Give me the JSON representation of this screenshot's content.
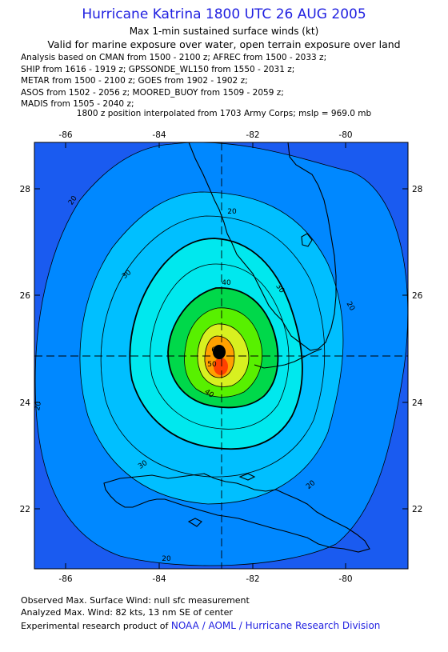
{
  "title": "Hurricane Katrina 1800 UTC 26 AUG 2005",
  "subtitle": "Max 1-min sustained surface winds (kt)",
  "subtitle2": "Valid for marine exposure over water, open terrain exposure over land",
  "analysis_lines": [
    "Analysis based on  CMAN from 1500 - 2100 z;  AFREC from 1500 - 2033 z;",
    "SHIP from 1616 - 1919 z;  GPSSONDE_WL150 from 1550 - 2031 z;",
    "METAR from 1500 - 2100 z;  GOES from 1902 - 1902 z;",
    "ASOS from 1502 - 2056 z;  MOORED_BUOY from 1509 - 2059 z;",
    "MADIS from 1505 - 2040 z;"
  ],
  "position_note": "1800 z position interpolated from 1703 Army Corps; mslp = 969.0 mb",
  "map": {
    "lon_ticks": [
      "-86",
      "-84",
      "-82",
      "-80"
    ],
    "lat_ticks": [
      "28",
      "26",
      "24",
      "22"
    ],
    "contour_labels": [
      "20",
      "20",
      "30",
      "30",
      "40",
      "40",
      "50",
      "60",
      "20",
      "20",
      "20",
      "20",
      "30"
    ],
    "colors": {
      "c_lt20": "#1a5bf0",
      "c_20_30": "#0088ff",
      "c_30_40": "#00bfff",
      "c_40_50": "#00e8ee",
      "c_50_60": "#00d84a",
      "c_60_70": "#58f000",
      "c_70_80": "#d8f020",
      "c_80_90": "#ffa000",
      "c_core": "#ff4000"
    }
  },
  "footer": {
    "observed": "Observed Max. Surface Wind: null sfc measurement",
    "analyzed": "Analyzed Max. Wind: 82 kts, 13 nm SE of center",
    "product_prefix": "Experimental research product of",
    "product_link": "NOAA / AOML / Hurricane Research Division"
  }
}
